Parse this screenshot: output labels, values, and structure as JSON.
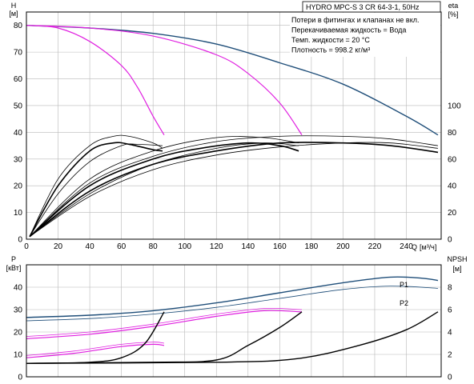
{
  "chart_data": [
    {
      "type": "line",
      "panel": "head-efficiency",
      "title": "HYDRO MPC-S 3 CR 64-3-1, 50Hz",
      "info_lines": [
        "Потери в фитингах и клапанах не вкл.",
        "Перекачиваемая жидкость = Вода",
        "Темп. жидкости = 20 °C",
        "Плотность = 998.2 кг/м³"
      ],
      "left_axis": {
        "name": "H",
        "unit": "[м]",
        "range": [
          0,
          85
        ],
        "ticks": [
          "0",
          "10",
          "20",
          "30",
          "40",
          "50",
          "60",
          "70",
          "80"
        ]
      },
      "right_axis": {
        "name": "eta",
        "unit": "[%]",
        "range": [
          0,
          170
        ],
        "ticks": [
          "0",
          "20",
          "40",
          "60",
          "80",
          "100"
        ]
      },
      "x_axis": {
        "name": "Q",
        "unit": "[м³/ч]",
        "range": [
          0,
          262
        ],
        "ticks": [
          "0",
          "20",
          "40",
          "60",
          "80",
          "100",
          "120",
          "140",
          "160",
          "180",
          "200",
          "220",
          "240"
        ]
      },
      "grid": true,
      "series": [
        {
          "color": "#1f4e79",
          "width": 1.4,
          "axis": "left",
          "points": [
            [
              0,
              80
            ],
            [
              40,
              79
            ],
            [
              80,
              77
            ],
            [
              120,
              73
            ],
            [
              160,
              66
            ],
            [
              200,
              58
            ],
            [
              240,
              46
            ],
            [
              260,
              39
            ]
          ]
        },
        {
          "color": "#e020e0",
          "width": 1.2,
          "axis": "left",
          "points": [
            [
              0,
              80
            ],
            [
              20,
              79
            ],
            [
              40,
              74
            ],
            [
              60,
              65
            ],
            [
              70,
              57
            ],
            [
              80,
              46
            ],
            [
              87,
              39
            ]
          ]
        },
        {
          "color": "#e020e0",
          "width": 1.2,
          "axis": "left",
          "points": [
            [
              0,
              80
            ],
            [
              40,
              79
            ],
            [
              80,
              76
            ],
            [
              120,
              69
            ],
            [
              140,
              62
            ],
            [
              160,
              51
            ],
            [
              174,
              39
            ]
          ]
        },
        {
          "color": "#000000",
          "width": 1.6,
          "axis": "right",
          "points": [
            [
              2,
              2
            ],
            [
              20,
              40
            ],
            [
              40,
              66
            ],
            [
              55,
              72
            ],
            [
              65,
              71
            ],
            [
              80,
              67
            ],
            [
              86,
              66
            ]
          ]
        },
        {
          "color": "#000000",
          "width": 0.8,
          "axis": "right",
          "points": [
            [
              2,
              2
            ],
            [
              20,
              45
            ],
            [
              40,
              70
            ],
            [
              55,
              77
            ],
            [
              65,
              77
            ],
            [
              80,
              72
            ],
            [
              86,
              68
            ]
          ]
        },
        {
          "color": "#000000",
          "width": 0.8,
          "axis": "right",
          "points": [
            [
              2,
              2
            ],
            [
              20,
              34
            ],
            [
              40,
              58
            ],
            [
              60,
              70
            ],
            [
              70,
              71
            ],
            [
              86,
              70
            ]
          ]
        },
        {
          "color": "#000000",
          "width": 1.6,
          "axis": "right",
          "points": [
            [
              2,
              2
            ],
            [
              40,
              40
            ],
            [
              80,
              60
            ],
            [
              110,
              68
            ],
            [
              140,
              72
            ],
            [
              160,
              70
            ],
            [
              172,
              66
            ]
          ]
        },
        {
          "color": "#000000",
          "width": 0.8,
          "axis": "right",
          "points": [
            [
              2,
              2
            ],
            [
              40,
              45
            ],
            [
              80,
              66
            ],
            [
              120,
              76
            ],
            [
              150,
              76
            ],
            [
              172,
              72
            ]
          ]
        },
        {
          "color": "#000000",
          "width": 0.8,
          "axis": "right",
          "points": [
            [
              2,
              2
            ],
            [
              40,
              34
            ],
            [
              80,
              56
            ],
            [
              120,
              68
            ],
            [
              150,
              72
            ],
            [
              172,
              70
            ]
          ]
        },
        {
          "color": "#000000",
          "width": 1.6,
          "axis": "right",
          "points": [
            [
              2,
              2
            ],
            [
              40,
              36
            ],
            [
              80,
              56
            ],
            [
              120,
              66
            ],
            [
              160,
              72
            ],
            [
              200,
              72
            ],
            [
              230,
              70
            ],
            [
              260,
              65
            ]
          ]
        },
        {
          "color": "#000000",
          "width": 0.8,
          "axis": "right",
          "points": [
            [
              2,
              2
            ],
            [
              40,
              42
            ],
            [
              80,
              62
            ],
            [
              120,
              73
            ],
            [
              160,
              77
            ],
            [
              200,
              77
            ],
            [
              230,
              75
            ],
            [
              260,
              70
            ]
          ]
        },
        {
          "color": "#000000",
          "width": 0.8,
          "axis": "right",
          "points": [
            [
              2,
              2
            ],
            [
              40,
              32
            ],
            [
              80,
              52
            ],
            [
              120,
              63
            ],
            [
              160,
              69
            ],
            [
              200,
              72
            ],
            [
              230,
              72
            ],
            [
              260,
              68
            ]
          ]
        }
      ]
    },
    {
      "type": "line",
      "panel": "power-npsh",
      "left_axis": {
        "name": "P",
        "unit": "[кВт]",
        "range": [
          0,
          50
        ],
        "ticks": [
          "0",
          "10",
          "20",
          "30",
          "40"
        ]
      },
      "right_axis": {
        "name": "NPSH",
        "unit": "[м]",
        "range": [
          0,
          10
        ],
        "ticks": [
          "0",
          "2",
          "4",
          "6",
          "8"
        ]
      },
      "x_range": [
        0,
        262
      ],
      "grid": true,
      "series": [
        {
          "name": "P1",
          "color": "#1f4e79",
          "width": 1.4,
          "axis": "left",
          "points": [
            [
              0,
              26.5
            ],
            [
              40,
              27.5
            ],
            [
              80,
              29.5
            ],
            [
              120,
              33
            ],
            [
              160,
              37.5
            ],
            [
              200,
              42
            ],
            [
              230,
              44.5
            ],
            [
              250,
              44
            ],
            [
              260,
              43
            ]
          ]
        },
        {
          "name": "P2",
          "color": "#1f4e79",
          "width": 0.8,
          "axis": "left",
          "points": [
            [
              0,
              25
            ],
            [
              40,
              26
            ],
            [
              80,
              28
            ],
            [
              120,
              31
            ],
            [
              160,
              35
            ],
            [
              200,
              39
            ],
            [
              230,
              40.5
            ],
            [
              260,
              39.5
            ]
          ]
        },
        {
          "color": "#e020e0",
          "width": 1.2,
          "axis": "left",
          "points": [
            [
              0,
              17
            ],
            [
              40,
              19
            ],
            [
              80,
              22.5
            ],
            [
              120,
              27
            ],
            [
              150,
              29.5
            ],
            [
              174,
              29
            ]
          ]
        },
        {
          "color": "#e020e0",
          "width": 0.8,
          "axis": "left",
          "points": [
            [
              0,
              18
            ],
            [
              40,
              20
            ],
            [
              80,
              23.5
            ],
            [
              120,
              28
            ],
            [
              150,
              30.5
            ],
            [
              174,
              30
            ]
          ]
        },
        {
          "color": "#e020e0",
          "width": 1.2,
          "axis": "left",
          "points": [
            [
              0,
              8.5
            ],
            [
              30,
              10.5
            ],
            [
              60,
              13.5
            ],
            [
              80,
              14.5
            ],
            [
              87,
              14
            ]
          ]
        },
        {
          "color": "#e020e0",
          "width": 0.8,
          "axis": "left",
          "points": [
            [
              0,
              9.5
            ],
            [
              30,
              11.5
            ],
            [
              60,
              14.5
            ],
            [
              80,
              15.5
            ],
            [
              87,
              15
            ]
          ]
        },
        {
          "color": "#000000",
          "width": 1.4,
          "axis": "right",
          "points": [
            [
              0,
              1.2
            ],
            [
              40,
              1.3
            ],
            [
              60,
              1.7
            ],
            [
              75,
              3
            ],
            [
              87,
              5.8
            ]
          ]
        },
        {
          "color": "#000000",
          "width": 1.4,
          "axis": "right",
          "points": [
            [
              0,
              1.2
            ],
            [
              80,
              1.3
            ],
            [
              120,
              1.5
            ],
            [
              140,
              2.8
            ],
            [
              160,
              4.4
            ],
            [
              174,
              5.8
            ]
          ]
        },
        {
          "color": "#000000",
          "width": 1.4,
          "axis": "right",
          "points": [
            [
              0,
              1.2
            ],
            [
              120,
              1.3
            ],
            [
              170,
              1.6
            ],
            [
              210,
              2.8
            ],
            [
              240,
              4.2
            ],
            [
              260,
              5.8
            ]
          ]
        }
      ]
    }
  ]
}
